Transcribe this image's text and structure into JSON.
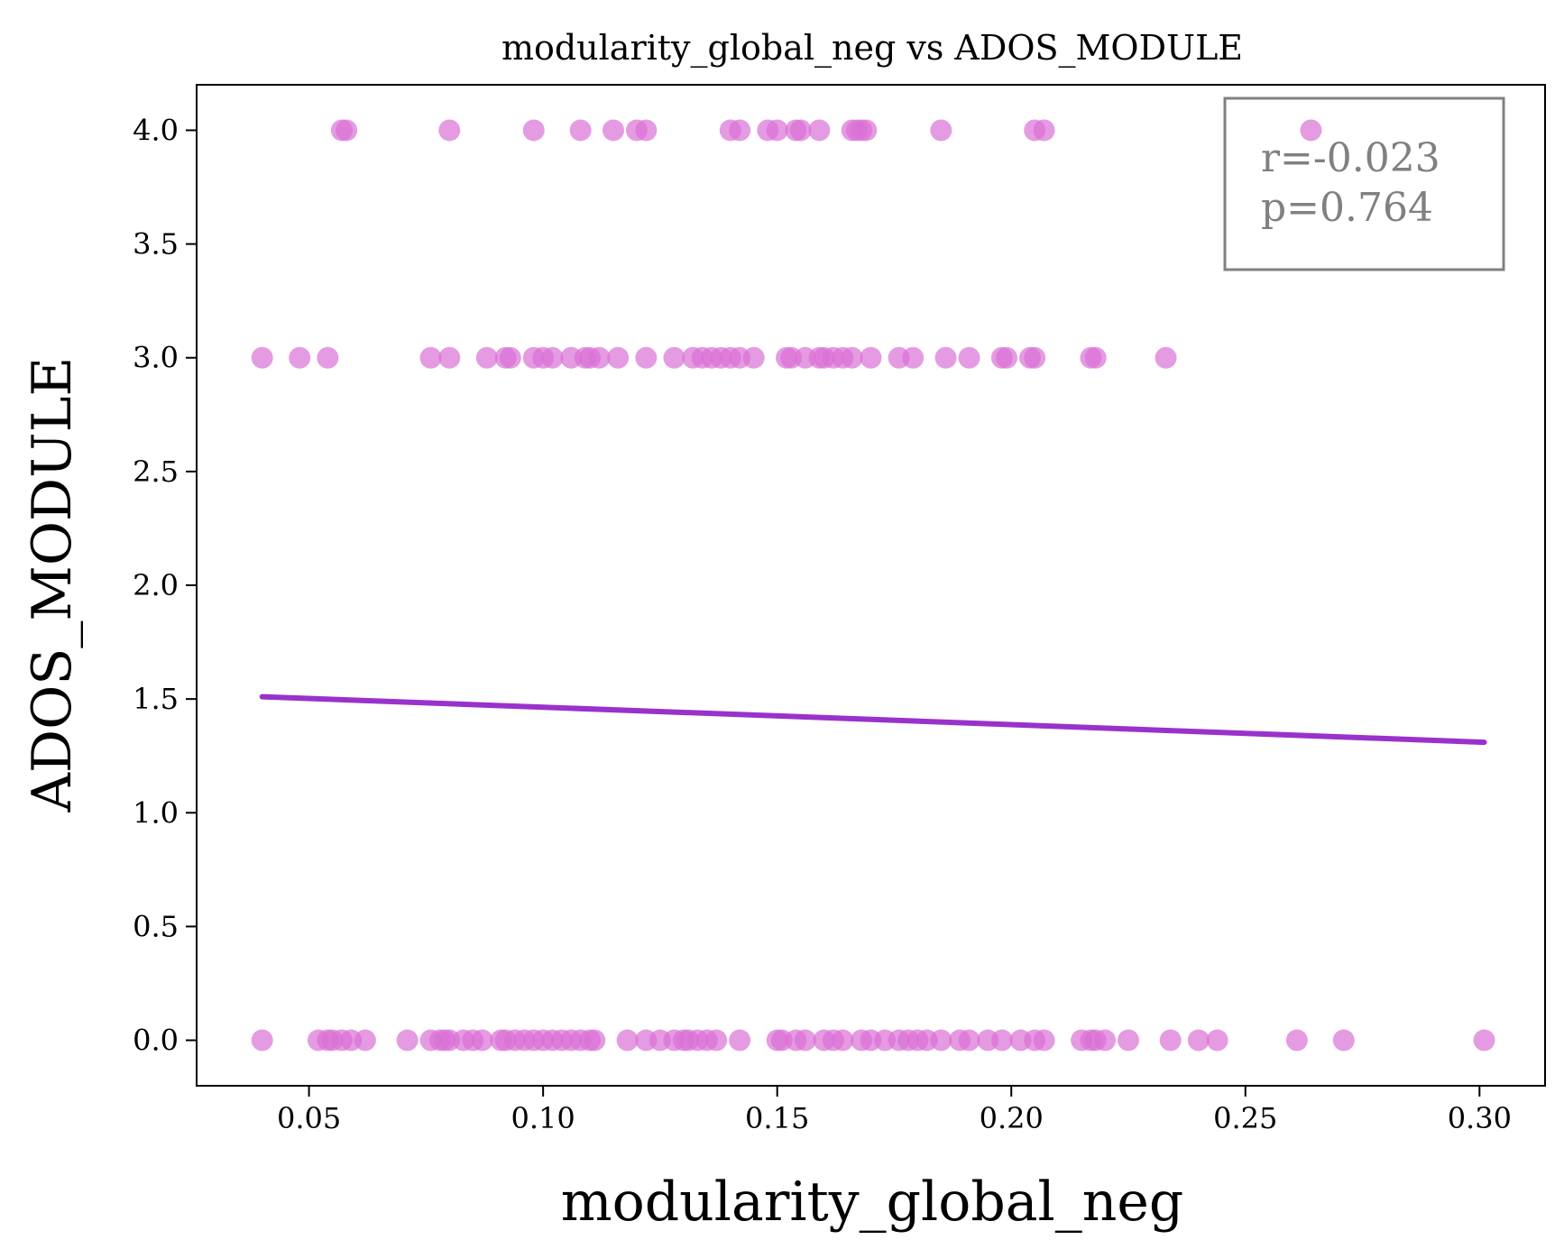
{
  "chart_data": {
    "type": "scatter",
    "title": "modularity_global_neg vs ADOS_MODULE",
    "xlabel": "modularity_global_neg",
    "ylabel": "ADOS_MODULE",
    "xlim": [
      0.026,
      0.314
    ],
    "ylim": [
      -0.2,
      4.2
    ],
    "xticks": [
      0.05,
      0.1,
      0.15,
      0.2,
      0.25,
      0.3
    ],
    "xtick_labels": [
      "0.05",
      "0.10",
      "0.15",
      "0.20",
      "0.25",
      "0.30"
    ],
    "yticks": [
      0.0,
      0.5,
      1.0,
      1.5,
      2.0,
      2.5,
      3.0,
      3.5,
      4.0
    ],
    "ytick_labels": [
      "0.0",
      "0.5",
      "1.0",
      "1.5",
      "2.0",
      "2.5",
      "3.0",
      "3.5",
      "4.0"
    ],
    "grid": false,
    "point_color": "#da70d6",
    "line_color": "#9932cc",
    "series": [
      {
        "type": "scatter",
        "points": [
          [
            0.057,
            4
          ],
          [
            0.058,
            4
          ],
          [
            0.08,
            4
          ],
          [
            0.098,
            4
          ],
          [
            0.108,
            4
          ],
          [
            0.115,
            4
          ],
          [
            0.12,
            4
          ],
          [
            0.122,
            4
          ],
          [
            0.14,
            4
          ],
          [
            0.142,
            4
          ],
          [
            0.148,
            4
          ],
          [
            0.15,
            4
          ],
          [
            0.154,
            4
          ],
          [
            0.155,
            4
          ],
          [
            0.159,
            4
          ],
          [
            0.166,
            4
          ],
          [
            0.167,
            4
          ],
          [
            0.168,
            4
          ],
          [
            0.169,
            4
          ],
          [
            0.185,
            4
          ],
          [
            0.205,
            4
          ],
          [
            0.207,
            4
          ],
          [
            0.264,
            4
          ],
          [
            0.04,
            3
          ],
          [
            0.048,
            3
          ],
          [
            0.054,
            3
          ],
          [
            0.076,
            3
          ],
          [
            0.08,
            3
          ],
          [
            0.088,
            3
          ],
          [
            0.092,
            3
          ],
          [
            0.093,
            3
          ],
          [
            0.098,
            3
          ],
          [
            0.1,
            3
          ],
          [
            0.102,
            3
          ],
          [
            0.106,
            3
          ],
          [
            0.109,
            3
          ],
          [
            0.11,
            3
          ],
          [
            0.112,
            3
          ],
          [
            0.116,
            3
          ],
          [
            0.122,
            3
          ],
          [
            0.128,
            3
          ],
          [
            0.132,
            3
          ],
          [
            0.134,
            3
          ],
          [
            0.136,
            3
          ],
          [
            0.138,
            3
          ],
          [
            0.14,
            3
          ],
          [
            0.142,
            3
          ],
          [
            0.145,
            3
          ],
          [
            0.152,
            3
          ],
          [
            0.153,
            3
          ],
          [
            0.156,
            3
          ],
          [
            0.159,
            3
          ],
          [
            0.16,
            3
          ],
          [
            0.162,
            3
          ],
          [
            0.164,
            3
          ],
          [
            0.166,
            3
          ],
          [
            0.17,
            3
          ],
          [
            0.176,
            3
          ],
          [
            0.179,
            3
          ],
          [
            0.186,
            3
          ],
          [
            0.191,
            3
          ],
          [
            0.198,
            3
          ],
          [
            0.199,
            3
          ],
          [
            0.204,
            3
          ],
          [
            0.205,
            3
          ],
          [
            0.217,
            3
          ],
          [
            0.218,
            3
          ],
          [
            0.233,
            3
          ],
          [
            0.04,
            0
          ],
          [
            0.052,
            0
          ],
          [
            0.054,
            0
          ],
          [
            0.055,
            0
          ],
          [
            0.057,
            0
          ],
          [
            0.059,
            0
          ],
          [
            0.062,
            0
          ],
          [
            0.071,
            0
          ],
          [
            0.076,
            0
          ],
          [
            0.078,
            0
          ],
          [
            0.079,
            0
          ],
          [
            0.08,
            0
          ],
          [
            0.083,
            0
          ],
          [
            0.085,
            0
          ],
          [
            0.087,
            0
          ],
          [
            0.091,
            0
          ],
          [
            0.092,
            0
          ],
          [
            0.094,
            0
          ],
          [
            0.096,
            0
          ],
          [
            0.098,
            0
          ],
          [
            0.1,
            0
          ],
          [
            0.102,
            0
          ],
          [
            0.104,
            0
          ],
          [
            0.106,
            0
          ],
          [
            0.108,
            0
          ],
          [
            0.11,
            0
          ],
          [
            0.111,
            0
          ],
          [
            0.118,
            0
          ],
          [
            0.122,
            0
          ],
          [
            0.125,
            0
          ],
          [
            0.128,
            0
          ],
          [
            0.13,
            0
          ],
          [
            0.131,
            0
          ],
          [
            0.133,
            0
          ],
          [
            0.135,
            0
          ],
          [
            0.137,
            0
          ],
          [
            0.142,
            0
          ],
          [
            0.15,
            0
          ],
          [
            0.151,
            0
          ],
          [
            0.154,
            0
          ],
          [
            0.156,
            0
          ],
          [
            0.16,
            0
          ],
          [
            0.162,
            0
          ],
          [
            0.164,
            0
          ],
          [
            0.168,
            0
          ],
          [
            0.17,
            0
          ],
          [
            0.173,
            0
          ],
          [
            0.176,
            0
          ],
          [
            0.178,
            0
          ],
          [
            0.18,
            0
          ],
          [
            0.182,
            0
          ],
          [
            0.185,
            0
          ],
          [
            0.189,
            0
          ],
          [
            0.191,
            0
          ],
          [
            0.195,
            0
          ],
          [
            0.198,
            0
          ],
          [
            0.202,
            0
          ],
          [
            0.205,
            0
          ],
          [
            0.207,
            0
          ],
          [
            0.215,
            0
          ],
          [
            0.217,
            0
          ],
          [
            0.218,
            0
          ],
          [
            0.22,
            0
          ],
          [
            0.225,
            0
          ],
          [
            0.234,
            0
          ],
          [
            0.24,
            0
          ],
          [
            0.244,
            0
          ],
          [
            0.261,
            0
          ],
          [
            0.271,
            0
          ],
          [
            0.301,
            0
          ]
        ]
      },
      {
        "type": "line",
        "points": [
          [
            0.04,
            1.51
          ],
          [
            0.301,
            1.31
          ]
        ]
      }
    ],
    "annotation": {
      "r_text": "r=-0.023",
      "p_text": "p=0.764",
      "placement": "top-right",
      "border_color": "#808080",
      "text_color": "#808080"
    }
  }
}
